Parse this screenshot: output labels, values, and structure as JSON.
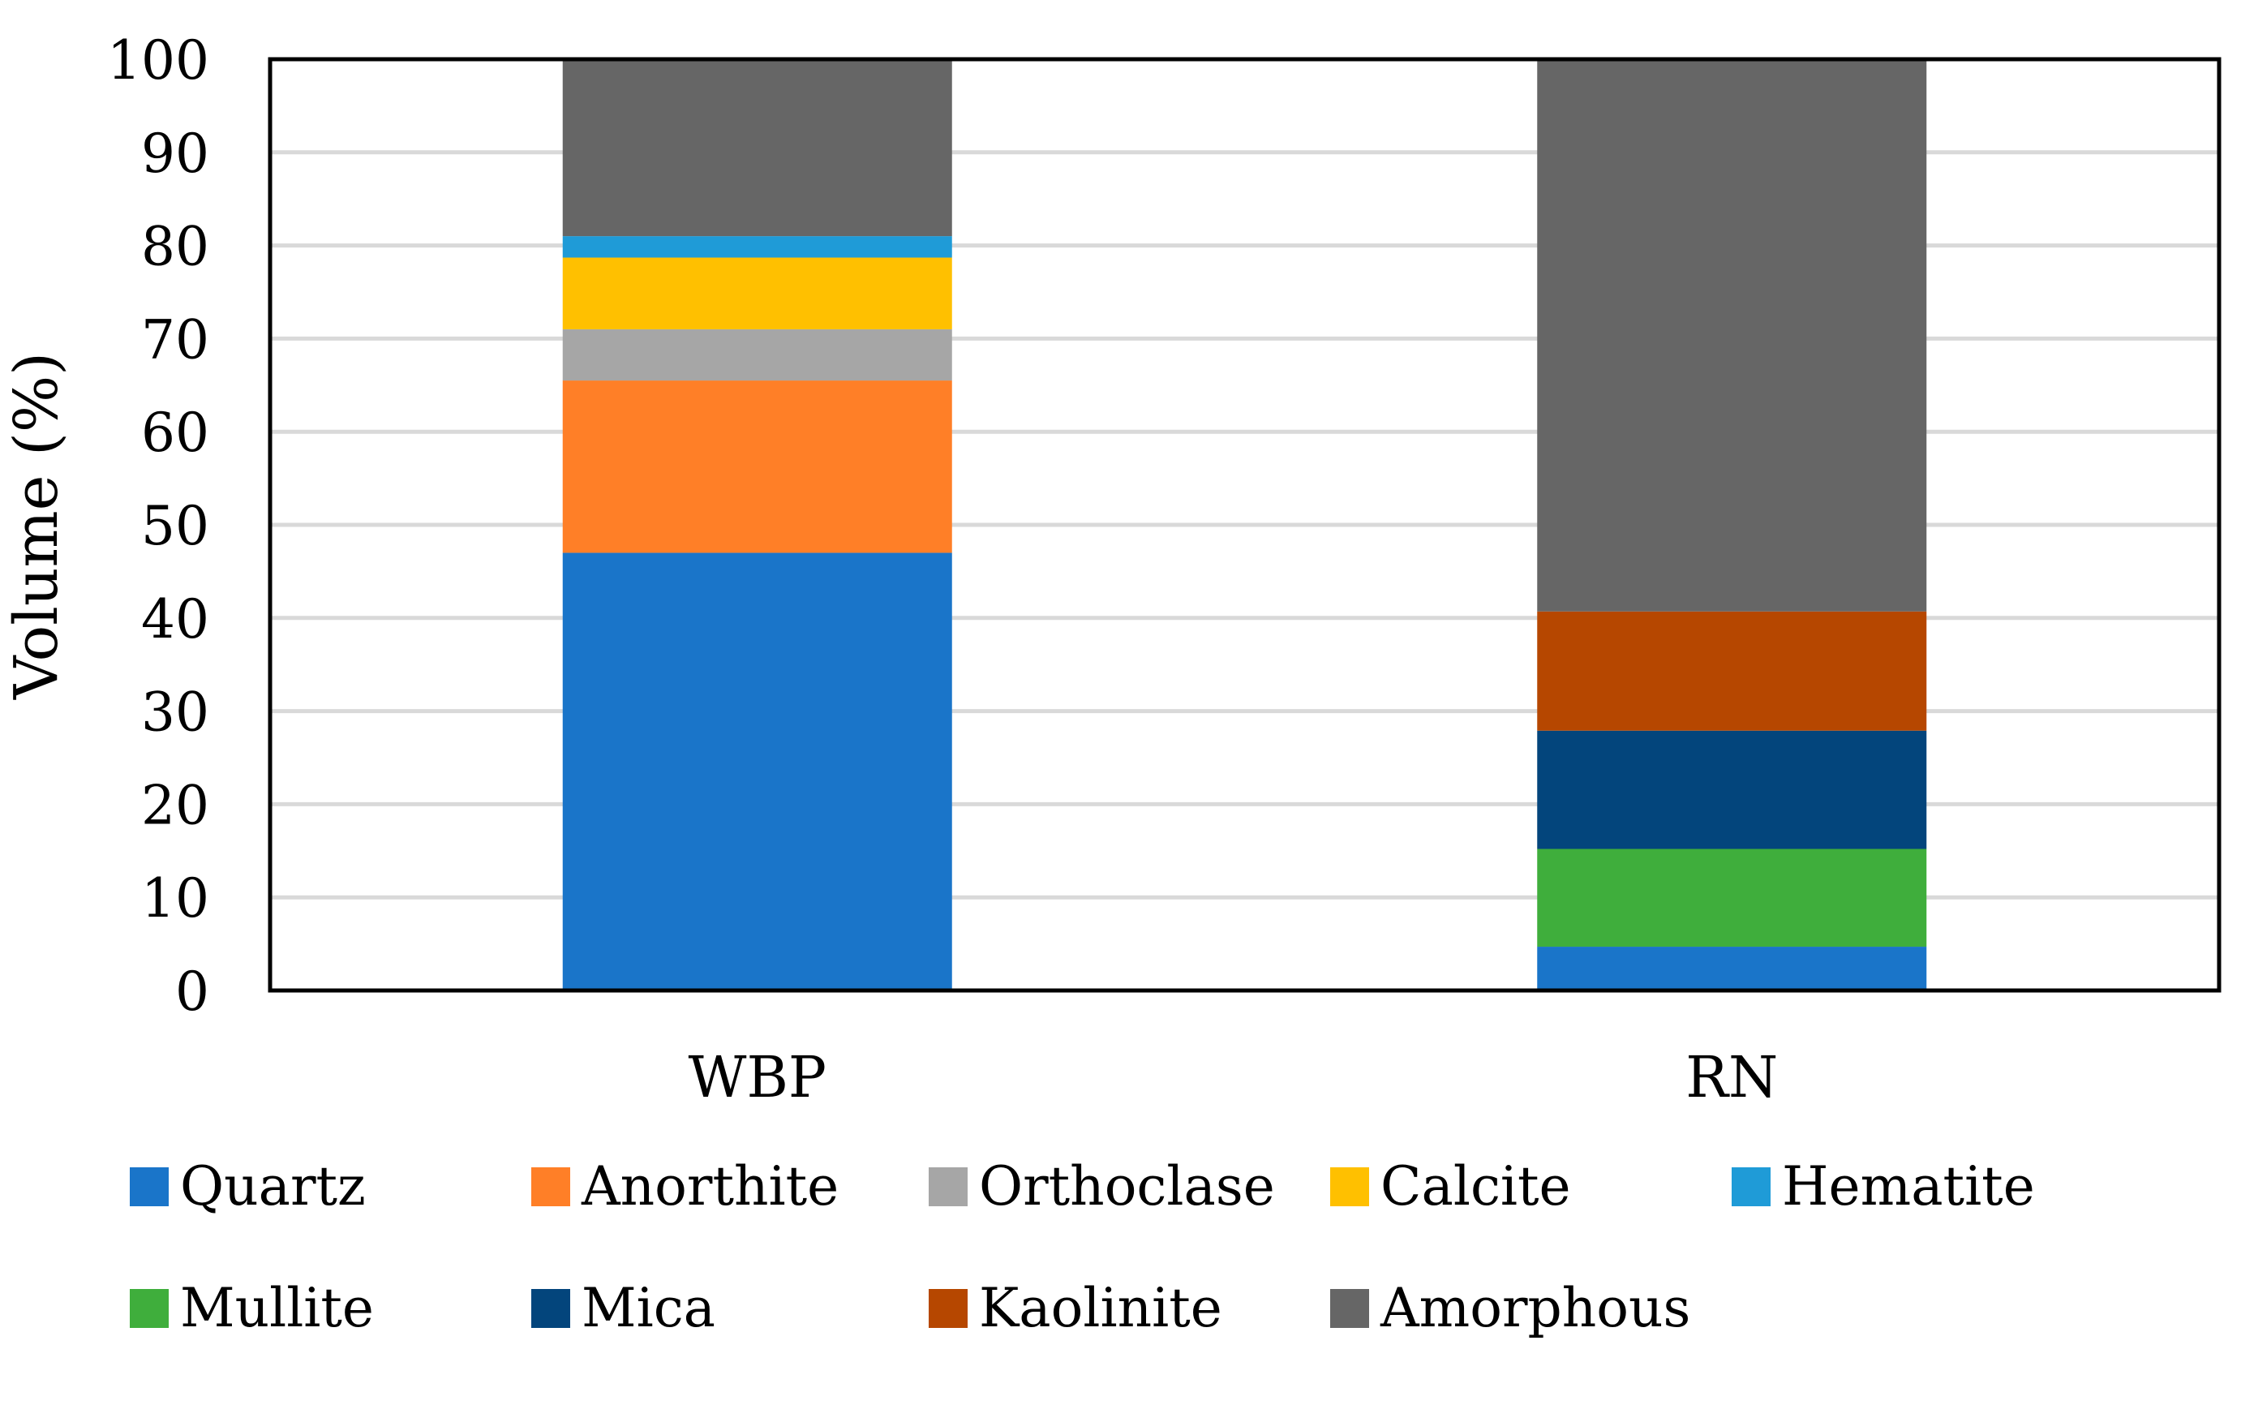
{
  "chart_data": {
    "type": "bar",
    "stacked": true,
    "title": "",
    "xlabel": "",
    "ylabel": "Volume (%)",
    "ylim": [
      0,
      100
    ],
    "yticks": [
      0,
      10,
      20,
      30,
      40,
      50,
      60,
      70,
      80,
      90,
      100
    ],
    "grid": true,
    "legend_position": "bottom",
    "categories": [
      "WBP",
      "RN"
    ],
    "series": [
      {
        "name": "Quartz",
        "color": "#1a75c9",
        "values": [
          47,
          4.7
        ]
      },
      {
        "name": "Anorthite",
        "color": "#ff7f27",
        "values": [
          18.5,
          0
        ]
      },
      {
        "name": "Orthoclase",
        "color": "#a6a6a6",
        "values": [
          5.5,
          0
        ]
      },
      {
        "name": "Calcite",
        "color": "#ffc000",
        "values": [
          7.7,
          0
        ]
      },
      {
        "name": "Hematite",
        "color": "#1f9bd7",
        "values": [
          2.3,
          0
        ]
      },
      {
        "name": "Mullite",
        "color": "#3fae3c",
        "values": [
          0,
          10.5
        ]
      },
      {
        "name": "Mica",
        "color": "#03457c",
        "values": [
          0,
          12.7
        ]
      },
      {
        "name": "Kaolinite",
        "color": "#b64700",
        "values": [
          0,
          12.8
        ]
      },
      {
        "name": "Amorphous",
        "color": "#666666",
        "values": [
          19,
          59.3
        ]
      }
    ]
  }
}
